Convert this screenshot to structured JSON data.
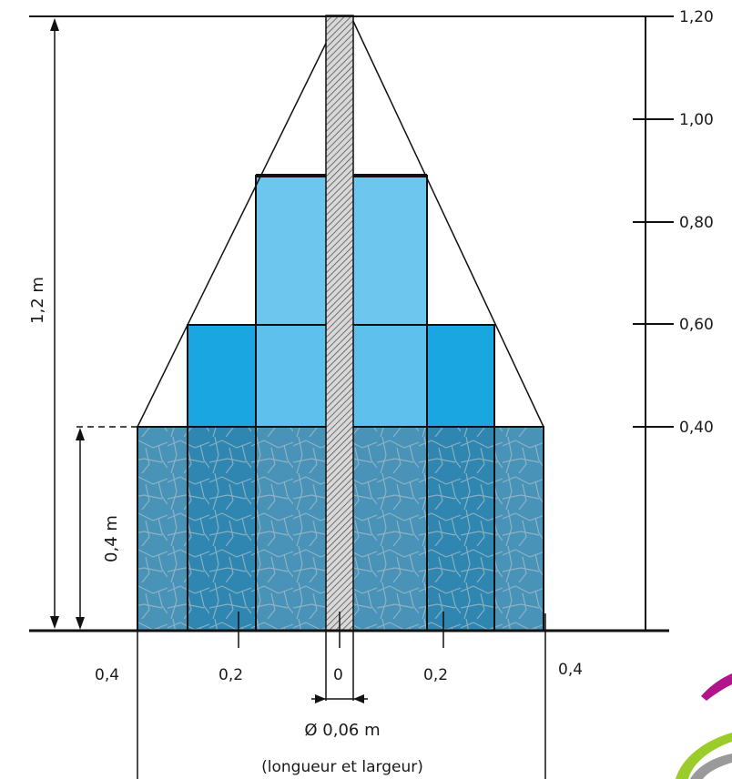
{
  "scale_ticks": [
    "1,20",
    "1,00",
    "0,80",
    "0,60",
    "0,40"
  ],
  "x_ticks": {
    "left_outer": "0,4",
    "left_inner": "0,2",
    "center": "0",
    "right_inner": "0,2",
    "right_outer": "0,4"
  },
  "dimensions": {
    "total_height": "1,2 m",
    "base_height": "0,4 m",
    "diameter": "Ø 0,06 m",
    "footnote": "(longueur et largeur)"
  },
  "colors": {
    "top_block": "#6cc6ee",
    "middle_block": "#1aa6e0",
    "base_block": "#4a93b8",
    "line": "#111111"
  }
}
